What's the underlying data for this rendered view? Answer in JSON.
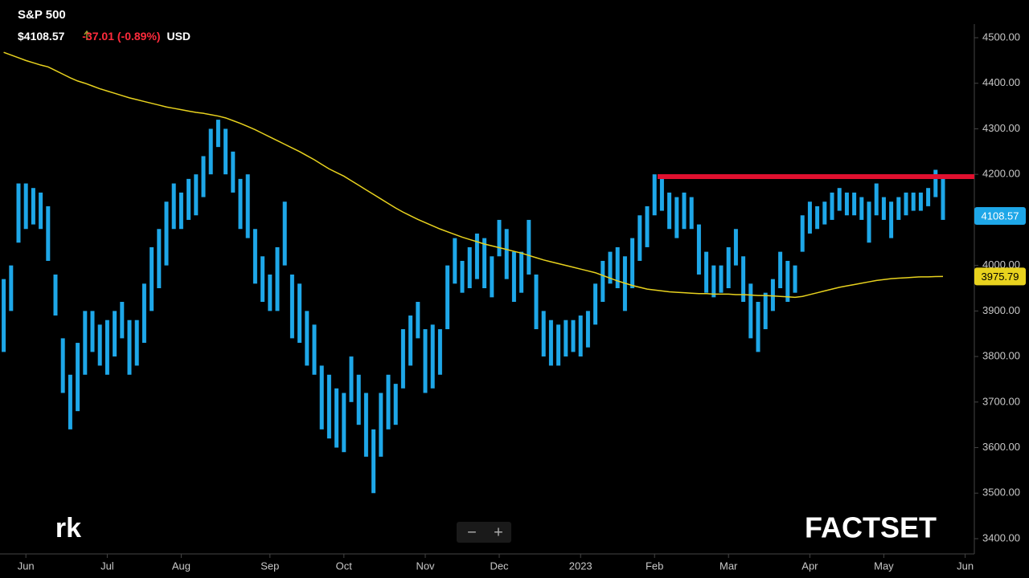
{
  "chart_data": {
    "type": "range-bar",
    "title": "S&P 500",
    "price": "$4108.57",
    "change": "-37.01 (-0.89%)",
    "currency": "USD",
    "categories": [
      null,
      null,
      null,
      "Jun",
      null,
      null,
      null,
      null,
      null,
      null,
      null,
      null,
      null,
      null,
      "Jul",
      null,
      null,
      null,
      null,
      null,
      null,
      null,
      null,
      null,
      "Aug",
      null,
      null,
      null,
      null,
      null,
      null,
      null,
      null,
      null,
      null,
      null,
      "Sep",
      null,
      null,
      null,
      null,
      null,
      null,
      null,
      null,
      null,
      "Oct",
      null,
      null,
      null,
      null,
      null,
      null,
      null,
      null,
      null,
      null,
      "Nov",
      null,
      null,
      null,
      null,
      null,
      null,
      null,
      null,
      null,
      "Dec",
      null,
      null,
      null,
      null,
      null,
      null,
      null,
      null,
      null,
      null,
      "2023",
      null,
      null,
      null,
      null,
      null,
      null,
      null,
      null,
      null,
      "Feb",
      null,
      null,
      null,
      null,
      null,
      null,
      null,
      null,
      null,
      "Mar",
      null,
      null,
      null,
      null,
      null,
      null,
      null,
      null,
      null,
      null,
      "Apr",
      null,
      null,
      null,
      null,
      null,
      null,
      null,
      null,
      null,
      "May",
      null,
      null,
      null,
      null,
      null,
      null,
      null,
      null,
      null,
      null,
      "Jun"
    ],
    "high": [
      3970,
      4000,
      4180,
      4180,
      4170,
      4160,
      4130,
      3980,
      3840,
      3760,
      3830,
      3900,
      3900,
      3870,
      3880,
      3900,
      3920,
      3880,
      3880,
      3960,
      4040,
      4080,
      4140,
      4180,
      4160,
      4190,
      4200,
      4240,
      4300,
      4320,
      4300,
      4250,
      4190,
      4200,
      4080,
      4020,
      3980,
      4040,
      4140,
      3980,
      3960,
      3900,
      3870,
      3780,
      3760,
      3730,
      3720,
      3800,
      3760,
      3720,
      3640,
      3720,
      3760,
      3740,
      3860,
      3890,
      3920,
      3860,
      3870,
      3860,
      4000,
      4060,
      4010,
      4040,
      4070,
      4060,
      4020,
      4100,
      4080,
      4030,
      4030,
      4100,
      3980,
      3900,
      3880,
      3870,
      3880,
      3880,
      3890,
      3900,
      3960,
      4010,
      4030,
      4040,
      4020,
      4060,
      4110,
      4130,
      4200,
      4190,
      4160,
      4150,
      4160,
      4150,
      4090,
      4030,
      4000,
      4000,
      4040,
      4080,
      4020,
      3960,
      3920,
      3940,
      3970,
      4030,
      4010,
      4000,
      4110,
      4140,
      4130,
      4140,
      4160,
      4170,
      4160,
      4160,
      4150,
      4140,
      4180,
      4150,
      4140,
      4150,
      4160,
      4160,
      4160,
      4170,
      4210,
      4190,
      null,
      null,
      null
    ],
    "low": [
      3810,
      3900,
      4050,
      4080,
      4090,
      4080,
      4010,
      3890,
      3720,
      3640,
      3680,
      3760,
      3810,
      3780,
      3760,
      3800,
      3840,
      3760,
      3780,
      3830,
      3900,
      3950,
      4000,
      4080,
      4080,
      4100,
      4110,
      4150,
      4200,
      4260,
      4200,
      4160,
      4080,
      4060,
      3960,
      3920,
      3900,
      3900,
      4000,
      3840,
      3830,
      3780,
      3760,
      3640,
      3620,
      3600,
      3590,
      3700,
      3650,
      3580,
      3500,
      3580,
      3640,
      3650,
      3730,
      3780,
      3840,
      3720,
      3730,
      3760,
      3860,
      3960,
      3940,
      3950,
      3970,
      3950,
      3930,
      4020,
      3970,
      3920,
      3940,
      3980,
      3860,
      3800,
      3780,
      3780,
      3800,
      3810,
      3800,
      3820,
      3870,
      3920,
      3960,
      3950,
      3900,
      3950,
      4010,
      4040,
      4110,
      4120,
      4080,
      4060,
      4080,
      4080,
      3980,
      3940,
      3930,
      3940,
      3950,
      4000,
      3920,
      3840,
      3810,
      3860,
      3900,
      3950,
      3920,
      3940,
      4030,
      4070,
      4080,
      4090,
      4100,
      4120,
      4110,
      4110,
      4100,
      4050,
      4110,
      4100,
      4060,
      4100,
      4110,
      4120,
      4120,
      4130,
      4150,
      4100,
      null,
      null,
      null
    ],
    "color": "#1ea7e8",
    "ma": [
      4468,
      4462,
      4456,
      4450,
      4445,
      4440,
      4436,
      4428,
      4420,
      4412,
      4405,
      4400,
      4394,
      4388,
      4383,
      4378,
      4373,
      4368,
      4364,
      4360,
      4356,
      4352,
      4348,
      4345,
      4342,
      4339,
      4336,
      4334,
      4331,
      4328,
      4324,
      4318,
      4312,
      4305,
      4298,
      4290,
      4282,
      4274,
      4266,
      4258,
      4250,
      4241,
      4232,
      4222,
      4212,
      4204,
      4196,
      4186,
      4176,
      4166,
      4156,
      4146,
      4136,
      4126,
      4117,
      4109,
      4101,
      4094,
      4087,
      4080,
      4074,
      4068,
      4062,
      4057,
      4052,
      4047,
      4043,
      4039,
      4035,
      4031,
      4027,
      4022,
      4017,
      4012,
      4008,
      4004,
      4000,
      3996,
      3992,
      3988,
      3984,
      3978,
      3972,
      3966,
      3961,
      3956,
      3952,
      3948,
      3946,
      3944,
      3942,
      3941,
      3940,
      3939,
      3938,
      3938,
      3937,
      3937,
      3937,
      3936,
      3936,
      3935,
      3934,
      3934,
      3933,
      3932,
      3931,
      3930,
      3932,
      3936,
      3940,
      3944,
      3948,
      3952,
      3955,
      3958,
      3961,
      3964,
      3967,
      3969,
      3971,
      3972,
      3973,
      3974,
      3975,
      3975,
      3975.5,
      3975.79,
      null,
      null,
      null
    ],
    "ma_color": "#e8d21e",
    "resistance": 4195,
    "resistance_color": "#e0102f",
    "last": {
      "value": 4108.57,
      "label": "4108.57"
    },
    "ma_last": {
      "value": 3975.79,
      "label": "3975.79"
    },
    "ylim": [
      3400,
      4500
    ],
    "yticks": [
      {
        "value": 3400,
        "label": "3400.00"
      },
      {
        "value": 3500,
        "label": "3500.00"
      },
      {
        "value": 3600,
        "label": "3600.00"
      },
      {
        "value": 3700,
        "label": "3700.00"
      },
      {
        "value": 3800,
        "label": "3800.00"
      },
      {
        "value": 3900,
        "label": "3900.00"
      },
      {
        "value": 4000,
        "label": "4000.00"
      },
      {
        "value": 4100,
        "label": "4100.00"
      },
      {
        "value": 4200,
        "label": "4200.00"
      },
      {
        "value": 4300,
        "label": "4300.00"
      },
      {
        "value": 4400,
        "label": "4400.00"
      },
      {
        "value": 4500,
        "label": "4500.00"
      }
    ]
  },
  "controls": {
    "zoom_out": "−",
    "zoom_in": "+"
  },
  "logos": {
    "left": "rk",
    "right": "FACTSET"
  }
}
